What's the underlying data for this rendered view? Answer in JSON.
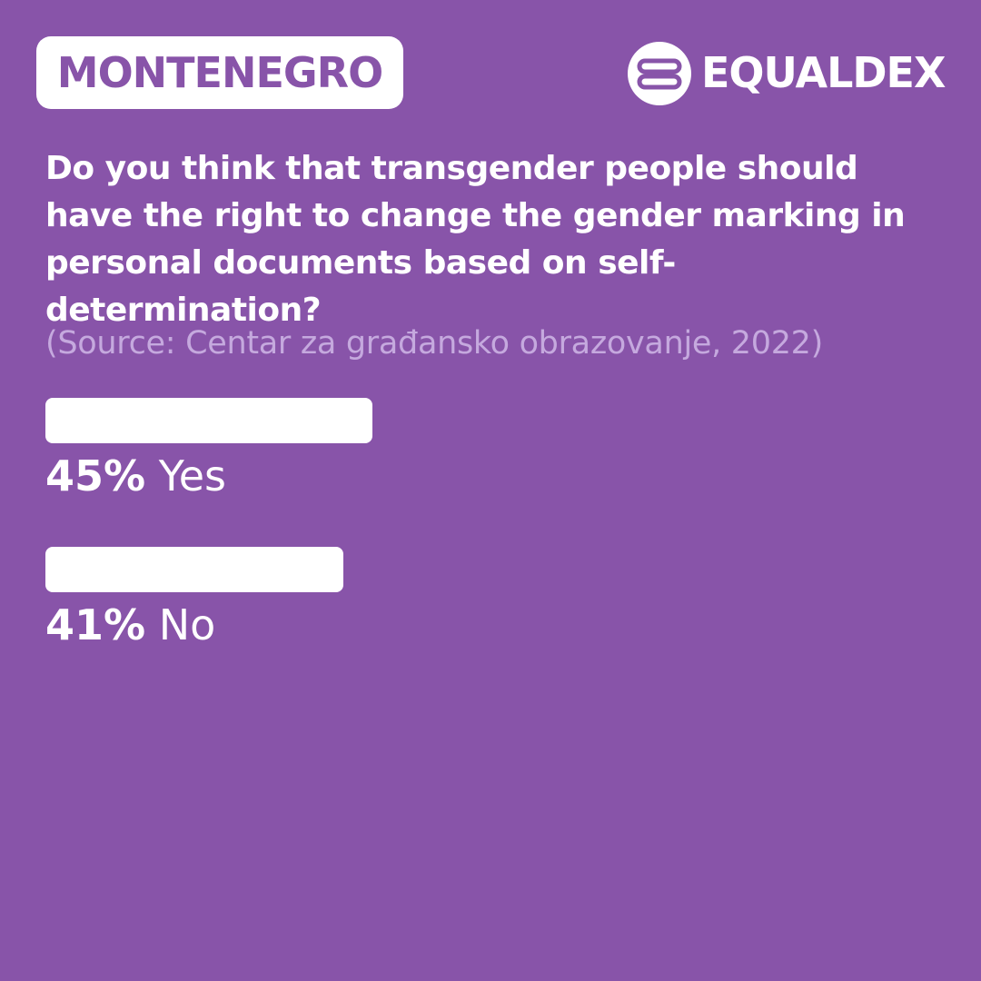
{
  "header": {
    "country": "MONTENEGRO",
    "brand": "EQUALDEX"
  },
  "chart_data": {
    "type": "bar",
    "title": "Do you think that transgender people should have the right to change the gender marking in personal documents based on self-determination?",
    "subtitle": "(Source: Centar za građansko obrazovanje, 2022)",
    "categories": [
      "Yes",
      "No"
    ],
    "values": [
      45,
      41
    ],
    "value_labels": [
      "45%",
      "41%"
    ],
    "color": "#ffffff"
  }
}
